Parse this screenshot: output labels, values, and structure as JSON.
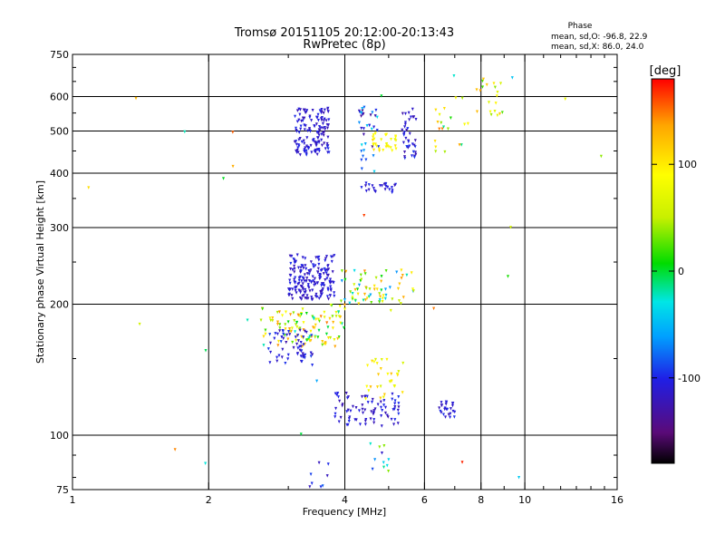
{
  "chart_data": {
    "type": "scatter",
    "title": "Tromsø 20151105 20:12:00-20:13:43",
    "subtitle": "RwPretec (8p)",
    "phase_stats": {
      "header": "Phase",
      "line_o": "mean, sd,O: -96.8, 22.9",
      "line_x": "mean, sd,X: 86.0, 24.0"
    },
    "xlabel": "Frequency [MHz]",
    "ylabel": "Stationary phase Virtual Height [km]",
    "x_scale": "log",
    "y_scale": "log",
    "xlim": [
      1,
      16
    ],
    "ylim": [
      75,
      750
    ],
    "x_ticks": [
      1,
      2,
      4,
      6,
      8,
      10,
      16
    ],
    "y_ticks": [
      75,
      100,
      200,
      300,
      400,
      500,
      600,
      750
    ],
    "x_gridlines": [
      2,
      4,
      6,
      8,
      10
    ],
    "y_gridlines": [
      100,
      200,
      300,
      400,
      500,
      600
    ],
    "grid": true,
    "colorbar": {
      "label": "[deg]",
      "range": [
        -180,
        180
      ],
      "ticks": [
        100,
        0,
        -100
      ],
      "placement": "right",
      "colors": [
        "#000000",
        "#5a0a78",
        "#1f1fe6",
        "#00a0ff",
        "#00e6e6",
        "#00dc00",
        "#c8f000",
        "#ffff00",
        "#ffa500",
        "#ff0000"
      ]
    },
    "clusters": [
      {
        "x": [
          3.1,
          3.7
        ],
        "y": [
          440,
          565
        ],
        "n": 140,
        "phase": -110,
        "sp": 15
      },
      {
        "x": [
          4.3,
          4.75
        ],
        "y": [
          400,
          570
        ],
        "n": 35,
        "phase": -90,
        "sp": 60
      },
      {
        "x": [
          4.6,
          5.2
        ],
        "y": [
          445,
          495
        ],
        "n": 30,
        "phase": 90,
        "sp": 20
      },
      {
        "x": [
          5.35,
          5.75
        ],
        "y": [
          430,
          565
        ],
        "n": 40,
        "phase": -110,
        "sp": 20
      },
      {
        "x": [
          4.3,
          5.3
        ],
        "y": [
          360,
          380
        ],
        "n": 25,
        "phase": -110,
        "sp": 15
      },
      {
        "x": [
          3.0,
          3.8
        ],
        "y": [
          205,
          260
        ],
        "n": 180,
        "phase": -110,
        "sp": 15
      },
      {
        "x": [
          3.9,
          5.7
        ],
        "y": [
          200,
          240
        ],
        "n": 70,
        "phase": 40,
        "sp": 110
      },
      {
        "x": [
          2.6,
          4.0
        ],
        "y": [
          160,
          200
        ],
        "n": 110,
        "phase": 60,
        "sp": 90
      },
      {
        "x": [
          2.7,
          3.4
        ],
        "y": [
          145,
          175
        ],
        "n": 60,
        "phase": -110,
        "sp": 20
      },
      {
        "x": [
          3.8,
          5.3
        ],
        "y": [
          105,
          125
        ],
        "n": 80,
        "phase": -110,
        "sp": 15
      },
      {
        "x": [
          4.4,
          5.4
        ],
        "y": [
          120,
          150
        ],
        "n": 30,
        "phase": 90,
        "sp": 40
      },
      {
        "x": [
          6.4,
          7.0
        ],
        "y": [
          110,
          120
        ],
        "n": 25,
        "phase": -110,
        "sp": 15
      },
      {
        "x": [
          6.2,
          7.5
        ],
        "y": [
          440,
          600
        ],
        "n": 20,
        "phase": 60,
        "sp": 90
      },
      {
        "x": [
          7.8,
          9.0
        ],
        "y": [
          540,
          660
        ],
        "n": 20,
        "phase": 80,
        "sp": 60
      },
      {
        "x": [
          4.6,
          5.0
        ],
        "y": [
          82,
          95
        ],
        "n": 10,
        "phase": -60,
        "sp": 100
      },
      {
        "x": [
          3.3,
          3.7
        ],
        "y": [
          76,
          88
        ],
        "n": 8,
        "phase": -100,
        "sp": 20
      },
      {
        "x": [
          1.0,
          15.0
        ],
        "y": [
          80,
          700
        ],
        "n": 30,
        "phase": 60,
        "sp": 120
      }
    ]
  }
}
